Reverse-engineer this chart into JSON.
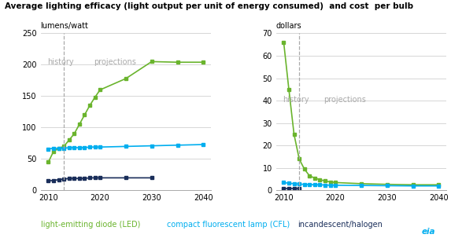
{
  "title": "Average lighting efficacy (light output per unit of energy consumed)  and cost  per bulb",
  "left_ylabel": "lumens/watt",
  "right_ylabel": "dollars",
  "history_label": "history",
  "projections_label": "projections",
  "dashed_line_x": 2013,
  "led_color": "#6ab42d",
  "cfl_color": "#00aeef",
  "incandescent_color": "#1a2e5a",
  "led_label": "light-emitting diode (LED)",
  "cfl_label": "compact fluorescent lamp (CFL)",
  "inc_label": "incandescent/halogen",
  "left_ylim": [
    0,
    250
  ],
  "left_yticks": [
    0,
    50,
    100,
    150,
    200,
    250
  ],
  "right_ylim": [
    0,
    70
  ],
  "right_yticks": [
    0,
    10,
    20,
    30,
    40,
    50,
    60,
    70
  ],
  "xlim": [
    2008.5,
    2041.5
  ],
  "xticks": [
    2010,
    2020,
    2030,
    2040
  ],
  "efficacy_led": {
    "x": [
      2010,
      2011,
      2012,
      2013,
      2014,
      2015,
      2016,
      2017,
      2018,
      2019,
      2020,
      2025,
      2030,
      2035,
      2040
    ],
    "y": [
      45,
      62,
      67,
      70,
      80,
      90,
      105,
      120,
      135,
      148,
      160,
      178,
      205,
      204,
      204
    ]
  },
  "efficacy_cfl": {
    "x": [
      2010,
      2011,
      2012,
      2013,
      2014,
      2015,
      2016,
      2017,
      2018,
      2019,
      2020,
      2025,
      2030,
      2035,
      2040
    ],
    "y": [
      66,
      67,
      67,
      67,
      68,
      68,
      68,
      68,
      69,
      69,
      69,
      70,
      71,
      72,
      73
    ]
  },
  "efficacy_inc": {
    "x": [
      2010,
      2011,
      2012,
      2013,
      2014,
      2015,
      2016,
      2017,
      2018,
      2019,
      2020,
      2025,
      2030
    ],
    "y": [
      15,
      16,
      17,
      18,
      19,
      19,
      19,
      19,
      20,
      20,
      20,
      20,
      20
    ]
  },
  "cost_led": {
    "x": [
      2010,
      2011,
      2012,
      2013,
      2014,
      2015,
      2016,
      2017,
      2018,
      2019,
      2020,
      2025,
      2030,
      2035,
      2040
    ],
    "y": [
      66,
      45,
      25,
      14,
      9.5,
      6.5,
      5.5,
      4.8,
      4.2,
      3.8,
      3.5,
      3.0,
      2.7,
      2.5,
      2.5
    ]
  },
  "cost_cfl": {
    "x": [
      2010,
      2011,
      2012,
      2013,
      2014,
      2015,
      2016,
      2017,
      2018,
      2019,
      2020,
      2025,
      2030,
      2035,
      2040
    ],
    "y": [
      3.5,
      3.2,
      3.0,
      2.8,
      2.7,
      2.6,
      2.5,
      2.5,
      2.4,
      2.3,
      2.3,
      2.2,
      2.1,
      2.0,
      2.0
    ]
  },
  "cost_inc": {
    "x": [
      2010,
      2011,
      2012,
      2013
    ],
    "y": [
      1.0,
      1.0,
      1.0,
      1.0
    ]
  }
}
